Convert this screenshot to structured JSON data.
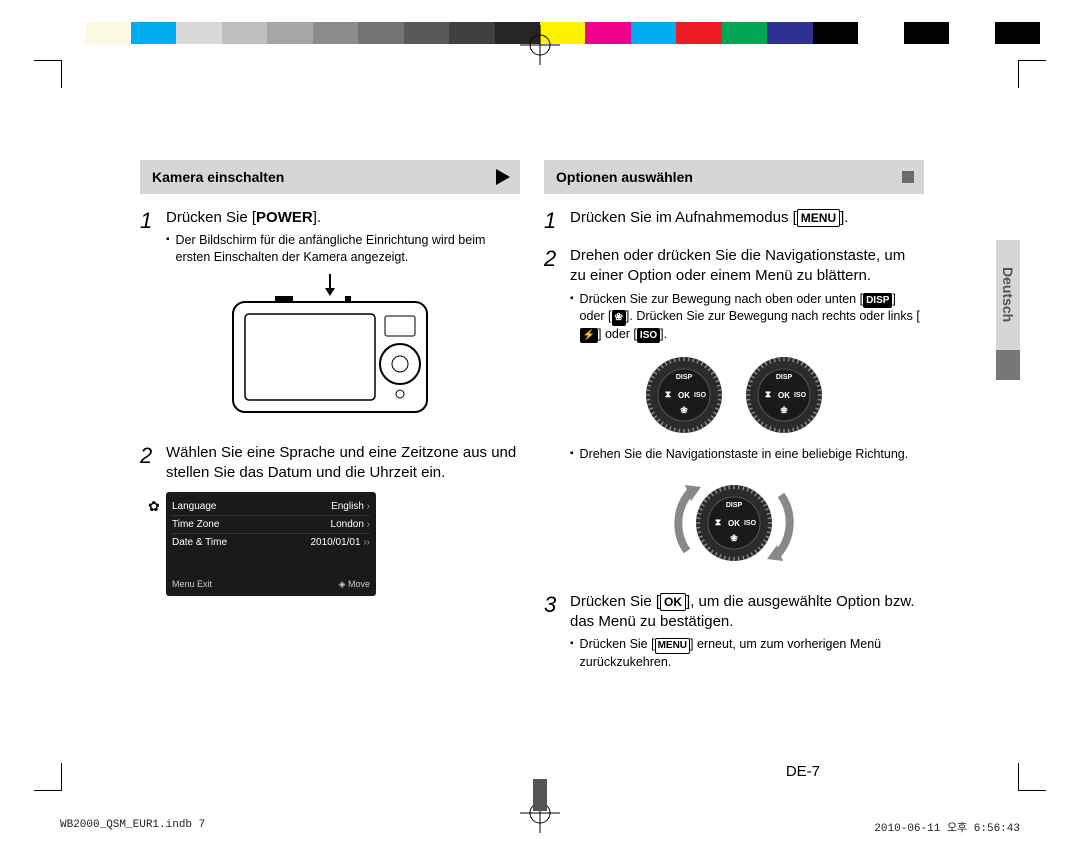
{
  "calibration_colors": [
    "#ffffff",
    "#fdfae3",
    "#00aeef",
    "#d8d8d8",
    "#bfbfbf",
    "#a6a6a6",
    "#8c8c8c",
    "#737373",
    "#595959",
    "#404040",
    "#262626",
    "#fff200",
    "#ec008c",
    "#00aeef",
    "#ed1c24",
    "#00a651",
    "#2e3192",
    "#000000",
    "#ffffff",
    "#000000",
    "#ffffff",
    "#000000"
  ],
  "left": {
    "banner": "Kamera einschalten",
    "step1_pre": "Drücken Sie [",
    "step1_btn": "POWER",
    "step1_post": "].",
    "step1_bullet": "Der Bildschirm für die anfängliche Einrichtung wird beim ersten Einschalten der Kamera angezeigt.",
    "step2": "Wählen Sie eine Sprache und eine Zeitzone aus und stellen Sie das Datum und die Uhrzeit ein.",
    "lcd": {
      "rows": [
        {
          "label": "Language",
          "value": "English",
          "dbl": false
        },
        {
          "label": "Time Zone",
          "value": "London",
          "dbl": false
        },
        {
          "label": "Date & Time",
          "value": "2010/01/01",
          "dbl": true
        }
      ],
      "footer_left": "Menu  Exit",
      "footer_right": "Move"
    }
  },
  "right": {
    "banner": "Optionen auswählen",
    "step1_pre": "Drücken Sie im Aufnahmemodus [",
    "step1_btn": "MENU",
    "step1_post": "].",
    "step2": "Drehen oder drücken Sie die Navigationstaste, um zu einer Option oder einem Menü zu blättern.",
    "step2_bullet_a": "Drücken Sie zur Bewegung nach oben oder unten [",
    "step2_bullet_b": "] oder [",
    "step2_bullet_c": "]. Drücken Sie zur Bewegung nach rechts oder links [",
    "step2_bullet_d": "] oder [",
    "step2_bullet_e": "].",
    "icon_disp": "DISP",
    "icon_flower": "❀",
    "icon_flash": "⚡",
    "icon_iso": "ISO",
    "step2_bullet2": "Drehen Sie die Navigationstaste in eine beliebige Richtung.",
    "step3_pre": "Drücken Sie [",
    "step3_btn": "OK",
    "step3_post": "], um die ausgewählte Option bzw. das Menü zu bestätigen.",
    "step3_bullet_pre": "Drücken Sie [",
    "step3_bullet_btn": "MENU",
    "step3_bullet_post": "] erneut, um zum vorherigen Menü zurückzukehren.",
    "dial_labels": {
      "top": "DISP",
      "left": "⧗",
      "center": "OK",
      "right": "ISO",
      "bottom": "❀"
    }
  },
  "side_tab": "Deutsch",
  "page_number": "DE-7",
  "footer_left": "WB2000_QSM_EUR1.indb   7",
  "footer_right": "2010-06-11   오후 6:56:43"
}
